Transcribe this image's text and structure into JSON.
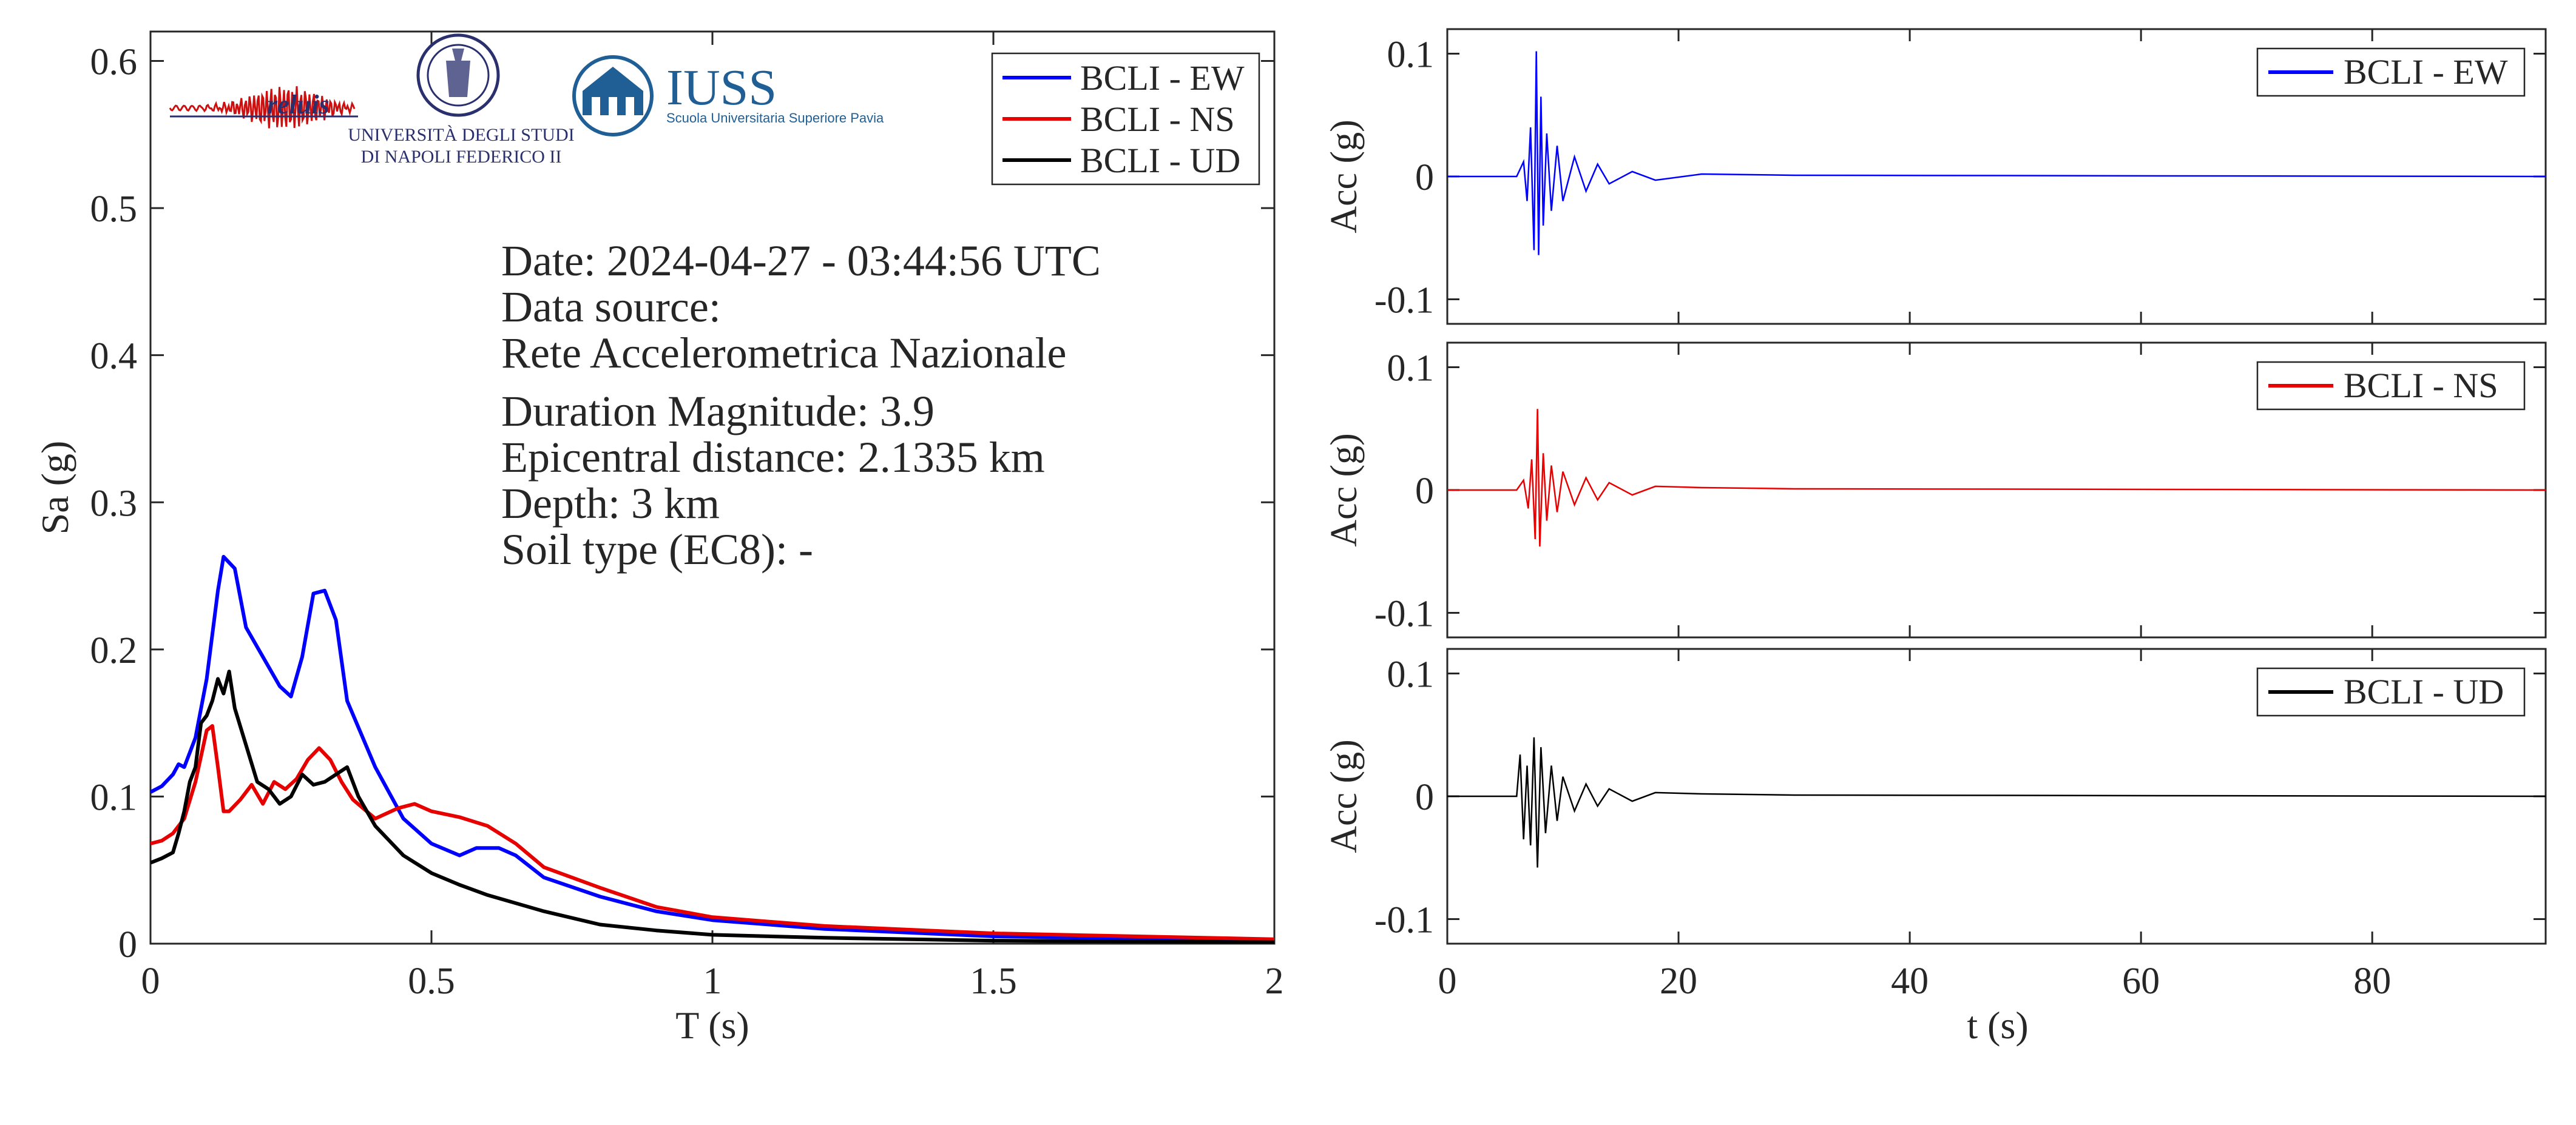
{
  "colors": {
    "ew": "#0000ff",
    "ns": "#e60000",
    "ud": "#000000",
    "axis": "#262626",
    "logo_blue": "#1f5f96",
    "logo_red": "#cc1010",
    "logo_navy": "#2a2f6e"
  },
  "logos": {
    "reluis": "reluis",
    "unina_line1": "UNIVERSITÀ DEGLI STUDI",
    "unina_line2": "DI NAPOLI FEDERICO II",
    "iuss": "IUSS",
    "iuss_sub": "Scuola Universitaria Superiore Pavia"
  },
  "info": {
    "date": "Date: 2024-04-27 - 03:44:56 UTC",
    "source_label": "Data source:",
    "source": "Rete Accelerometrica Nazionale",
    "magnitude": "Duration Magnitude: 3.9",
    "distance": "Epicentral distance: 2.1335 km",
    "depth": "Depth: 3 km",
    "soil": "Soil type (EC8): -"
  },
  "chart_data": [
    {
      "type": "line",
      "xlabel": "T (s)",
      "ylabel": "Sa (g)",
      "xlim": [
        0,
        2
      ],
      "ylim": [
        0,
        0.62
      ],
      "xticks": [
        0,
        0.5,
        1,
        1.5,
        2
      ],
      "xtick_labels": [
        "0",
        "0.5",
        "1",
        "1.5",
        "2"
      ],
      "yticks": [
        0,
        0.1,
        0.2,
        0.3,
        0.4,
        0.5,
        0.6
      ],
      "ytick_labels": [
        "0",
        "0.1",
        "0.2",
        "0.3",
        "0.4",
        "0.5",
        "0.6"
      ],
      "grid": false,
      "legend": "top-right",
      "series": [
        {
          "name": "BCLI - EW",
          "color": "#0000ff",
          "x": [
            0,
            0.02,
            0.04,
            0.05,
            0.06,
            0.08,
            0.1,
            0.12,
            0.13,
            0.15,
            0.17,
            0.2,
            0.23,
            0.25,
            0.27,
            0.29,
            0.31,
            0.33,
            0.35,
            0.4,
            0.45,
            0.5,
            0.55,
            0.58,
            0.62,
            0.65,
            0.7,
            0.8,
            0.9,
            1.0,
            1.2,
            1.5,
            2.0
          ],
          "y": [
            0.103,
            0.107,
            0.115,
            0.122,
            0.12,
            0.14,
            0.18,
            0.24,
            0.263,
            0.255,
            0.215,
            0.195,
            0.175,
            0.168,
            0.195,
            0.238,
            0.24,
            0.22,
            0.165,
            0.12,
            0.085,
            0.068,
            0.06,
            0.065,
            0.065,
            0.06,
            0.045,
            0.032,
            0.022,
            0.016,
            0.01,
            0.005,
            0.002
          ]
        },
        {
          "name": "BCLI - NS",
          "color": "#e60000",
          "x": [
            0,
            0.02,
            0.04,
            0.06,
            0.08,
            0.1,
            0.11,
            0.12,
            0.13,
            0.14,
            0.16,
            0.18,
            0.2,
            0.22,
            0.24,
            0.26,
            0.28,
            0.3,
            0.32,
            0.34,
            0.36,
            0.4,
            0.44,
            0.47,
            0.5,
            0.55,
            0.6,
            0.65,
            0.7,
            0.8,
            0.9,
            1.0,
            1.2,
            1.5,
            2.0
          ],
          "y": [
            0.068,
            0.07,
            0.075,
            0.085,
            0.11,
            0.145,
            0.148,
            0.12,
            0.09,
            0.09,
            0.098,
            0.108,
            0.095,
            0.11,
            0.105,
            0.112,
            0.125,
            0.133,
            0.125,
            0.11,
            0.098,
            0.085,
            0.092,
            0.095,
            0.09,
            0.086,
            0.08,
            0.068,
            0.052,
            0.038,
            0.025,
            0.018,
            0.012,
            0.007,
            0.003
          ]
        },
        {
          "name": "BCLI - UD",
          "color": "#000000",
          "x": [
            0,
            0.02,
            0.04,
            0.05,
            0.06,
            0.07,
            0.08,
            0.09,
            0.1,
            0.11,
            0.12,
            0.13,
            0.14,
            0.15,
            0.17,
            0.19,
            0.21,
            0.23,
            0.25,
            0.27,
            0.29,
            0.31,
            0.33,
            0.35,
            0.37,
            0.4,
            0.45,
            0.5,
            0.55,
            0.6,
            0.7,
            0.8,
            0.9,
            1.0,
            1.2,
            1.5,
            2.0
          ],
          "y": [
            0.055,
            0.058,
            0.062,
            0.075,
            0.09,
            0.11,
            0.12,
            0.15,
            0.155,
            0.165,
            0.18,
            0.17,
            0.185,
            0.16,
            0.135,
            0.11,
            0.105,
            0.095,
            0.1,
            0.115,
            0.108,
            0.11,
            0.115,
            0.12,
            0.1,
            0.08,
            0.06,
            0.048,
            0.04,
            0.033,
            0.022,
            0.013,
            0.009,
            0.006,
            0.004,
            0.002,
            0.001
          ]
        }
      ]
    },
    {
      "type": "line",
      "xlabel": "",
      "ylabel": "Acc (g)",
      "xlim": [
        0,
        95
      ],
      "ylim": [
        -0.12,
        0.12
      ],
      "yticks": [
        -0.1,
        0,
        0.1
      ],
      "ytick_labels": [
        "-0.1",
        "0",
        "0.1"
      ],
      "legend": "top-right",
      "series": [
        {
          "name": "BCLI - EW",
          "color": "#0000ff",
          "x": [
            0,
            6.0,
            6.6,
            6.9,
            7.2,
            7.5,
            7.7,
            7.9,
            8.1,
            8.3,
            8.6,
            9.0,
            9.5,
            10.0,
            11.0,
            12.0,
            13.0,
            14.0,
            16.0,
            18.0,
            22.0,
            30.0,
            95.0
          ],
          "y": [
            0,
            0,
            0.012,
            -0.02,
            0.04,
            -0.06,
            0.102,
            -0.064,
            0.065,
            -0.04,
            0.035,
            -0.028,
            0.025,
            -0.02,
            0.016,
            -0.012,
            0.01,
            -0.006,
            0.004,
            -0.003,
            0.002,
            0.001,
            0
          ]
        }
      ]
    },
    {
      "type": "line",
      "xlabel": "",
      "ylabel": "Acc (g)",
      "xlim": [
        0,
        95
      ],
      "ylim": [
        -0.12,
        0.12
      ],
      "yticks": [
        -0.1,
        0,
        0.1
      ],
      "ytick_labels": [
        "-0.1",
        "0",
        "0.1"
      ],
      "legend": "top-right",
      "series": [
        {
          "name": "BCLI - NS",
          "color": "#e60000",
          "x": [
            0,
            6.0,
            6.6,
            7.0,
            7.3,
            7.6,
            7.8,
            8.0,
            8.3,
            8.6,
            9.0,
            9.5,
            10.0,
            11.0,
            12.0,
            13.0,
            14.0,
            16.0,
            18.0,
            22.0,
            30.0,
            95.0
          ],
          "y": [
            0,
            0,
            0.008,
            -0.015,
            0.025,
            -0.04,
            0.066,
            -0.046,
            0.03,
            -0.025,
            0.02,
            -0.018,
            0.015,
            -0.012,
            0.01,
            -0.008,
            0.006,
            -0.004,
            0.003,
            0.002,
            0.001,
            0
          ]
        }
      ]
    },
    {
      "type": "line",
      "xlabel": "t (s)",
      "ylabel": "Acc (g)",
      "xlim": [
        0,
        95
      ],
      "ylim": [
        -0.12,
        0.12
      ],
      "xticks": [
        0,
        20,
        40,
        60,
        80
      ],
      "xtick_labels": [
        "0",
        "20",
        "40",
        "60",
        "80"
      ],
      "yticks": [
        -0.1,
        0,
        0.1
      ],
      "ytick_labels": [
        "-0.1",
        "0",
        "0.1"
      ],
      "legend": "top-right",
      "series": [
        {
          "name": "BCLI - UD",
          "color": "#000000",
          "x": [
            0,
            6.0,
            6.3,
            6.6,
            6.9,
            7.2,
            7.5,
            7.8,
            8.1,
            8.5,
            9.0,
            9.5,
            10.0,
            11.0,
            12.0,
            13.0,
            14.0,
            16.0,
            18.0,
            22.0,
            30.0,
            95.0
          ],
          "y": [
            0,
            0,
            0.034,
            -0.035,
            0.025,
            -0.04,
            0.048,
            -0.058,
            0.04,
            -0.03,
            0.025,
            -0.02,
            0.016,
            -0.012,
            0.01,
            -0.008,
            0.006,
            -0.004,
            0.003,
            0.002,
            0.001,
            0
          ]
        }
      ]
    }
  ]
}
